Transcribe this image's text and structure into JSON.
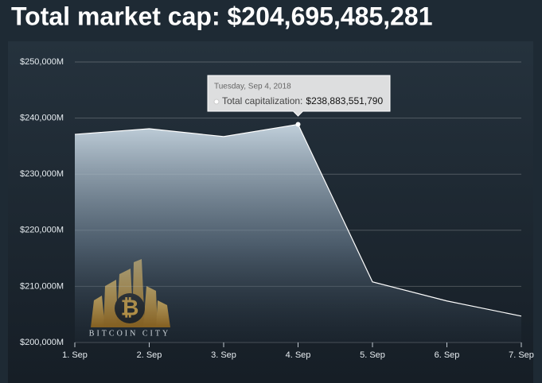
{
  "chart_data": {
    "type": "area",
    "title": "Total market cap: $204,695,485,281",
    "categories": [
      "1. Sep",
      "2. Sep",
      "3. Sep",
      "4. Sep",
      "5. Sep",
      "6. Sep",
      "7. Sep"
    ],
    "series": [
      {
        "name": "Total capitalization:",
        "color": "#ffffff",
        "values": [
          237100000000,
          238100000000,
          236700000000,
          238883551790,
          210800000000,
          207400000000,
          204700000000
        ],
        "value_labels": [
          null,
          null,
          null,
          "$238,883,551,790",
          null,
          null,
          null
        ]
      }
    ],
    "ylim": [
      200000000000,
      250000000000
    ],
    "yticks": [
      {
        "value": 200000000000,
        "label": "$200,000M"
      },
      {
        "value": 210000000000,
        "label": "$210,000M"
      },
      {
        "value": 220000000000,
        "label": "$220,000M"
      },
      {
        "value": 230000000000,
        "label": "$230,000M"
      },
      {
        "value": 240000000000,
        "label": "$240,000M"
      },
      {
        "value": 250000000000,
        "label": "$250,000M"
      }
    ],
    "grid": true,
    "tooltip": {
      "title": "Tuesday, Sep 4, 2018"
    },
    "watermark": "BITCOIN CITY"
  }
}
